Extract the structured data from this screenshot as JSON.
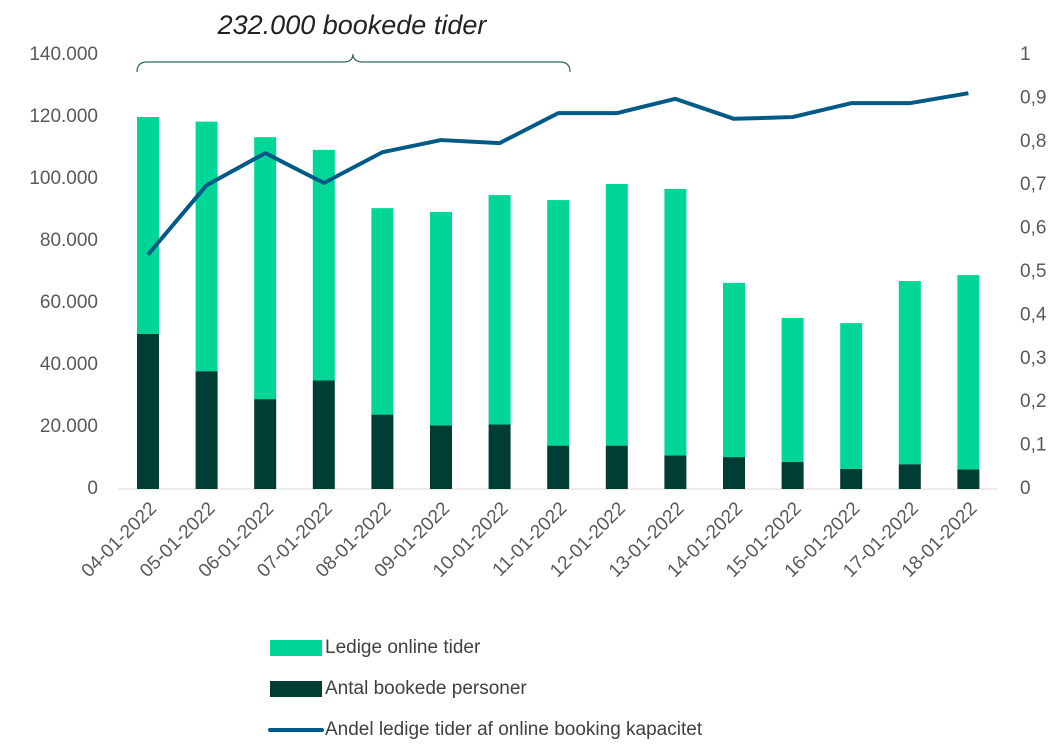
{
  "chart_data": {
    "type": "bar",
    "annotation": "232.000 bookede tider",
    "categories": [
      "04-01-2022",
      "05-01-2022",
      "06-01-2022",
      "07-01-2022",
      "08-01-2022",
      "09-01-2022",
      "10-01-2022",
      "11-01-2022",
      "12-01-2022",
      "13-01-2022",
      "14-01-2022",
      "15-01-2022",
      "16-01-2022",
      "17-01-2022",
      "18-01-2022"
    ],
    "series": [
      {
        "name": "Ledige online tider",
        "type": "bar",
        "color": "#00d696",
        "values": [
          70000,
          80500,
          84500,
          74400,
          66600,
          68900,
          74000,
          79200,
          84400,
          86000,
          56200,
          46500,
          47000,
          59100,
          62700
        ]
      },
      {
        "name": "Antal bookede personer",
        "type": "bar",
        "color": "#003d33",
        "values": [
          50000,
          38000,
          29000,
          35000,
          24000,
          20500,
          20800,
          14000,
          14000,
          10800,
          10300,
          8700,
          6500,
          8000,
          6300
        ]
      },
      {
        "name": "Andel ledige tider af online booking kapacitet",
        "type": "line",
        "axis": "y2",
        "color": "#005a87",
        "values": [
          0.54,
          0.7,
          0.774,
          0.705,
          0.776,
          0.804,
          0.797,
          0.866,
          0.866,
          0.899,
          0.853,
          0.857,
          0.889,
          0.889,
          0.912
        ]
      }
    ],
    "stacked": true,
    "grid": false,
    "ylim": [
      0,
      140000
    ],
    "yticks": [
      0,
      {
        "value": 20000,
        "label": "20.000"
      },
      {
        "value": 40000,
        "label": "40.000"
      },
      {
        "value": 60000,
        "label": "60.000"
      },
      {
        "value": 80000,
        "label": "80.000"
      },
      {
        "value": 100000,
        "label": "100.000"
      },
      {
        "value": 120000,
        "label": "120.000"
      },
      {
        "value": 140000,
        "label": "140.000"
      }
    ],
    "y2lim": [
      0,
      1
    ],
    "y2ticks": [
      0,
      {
        "value": 0.1,
        "label": "0,1"
      },
      {
        "value": 0.2,
        "label": "0,2"
      },
      {
        "value": 0.3,
        "label": "0,3"
      },
      {
        "value": 0.4,
        "label": "0,4"
      },
      {
        "value": 0.5,
        "label": "0,5"
      },
      {
        "value": 0.6,
        "label": "0,6"
      },
      {
        "value": 0.7,
        "label": "0,7"
      },
      {
        "value": 0.8,
        "label": "0,8"
      },
      {
        "value": 0.9,
        "label": "0,9"
      },
      1
    ],
    "legend": "bottom"
  }
}
